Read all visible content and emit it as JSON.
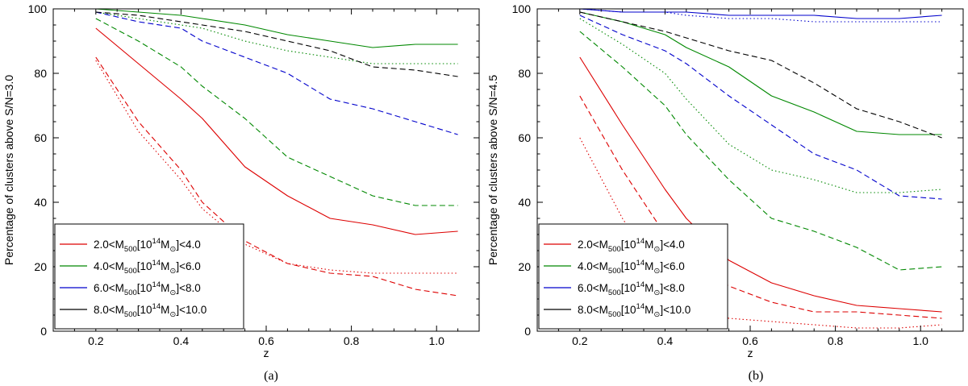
{
  "chart_data": [
    {
      "type": "line",
      "panel_label": "(a)",
      "xlabel": "z",
      "ylabel": "Percentage of clusters above S/N=3.0",
      "xlim": [
        0.1,
        1.1
      ],
      "ylim": [
        0,
        100
      ],
      "xticks": [
        0.2,
        0.4,
        0.6,
        0.8,
        1.0
      ],
      "xtick_labels": [
        "0.2",
        "0.4",
        "0.6",
        "0.8",
        "1.0"
      ],
      "yticks": [
        0,
        20,
        40,
        60,
        80,
        100
      ],
      "ytick_labels": [
        "0",
        "20",
        "40",
        "60",
        "80",
        "100"
      ],
      "legend_placement": "bottom-left",
      "x": [
        0.2,
        0.3,
        0.4,
        0.45,
        0.55,
        0.65,
        0.75,
        0.85,
        0.95,
        1.05
      ],
      "series": [
        {
          "name": "red solid",
          "color": "#dd0000",
          "dash": "solid",
          "values": [
            94,
            83,
            72,
            66,
            51,
            42,
            35,
            33,
            30,
            31
          ]
        },
        {
          "name": "red dashed",
          "color": "#dd0000",
          "dash": "dashed",
          "values": [
            85,
            65,
            50,
            40,
            28,
            21,
            18,
            17,
            13,
            11
          ]
        },
        {
          "name": "red dotted",
          "color": "#dd0000",
          "dash": "dotted",
          "values": [
            84,
            62,
            47,
            38,
            27,
            21,
            19,
            18,
            18,
            18
          ]
        },
        {
          "name": "green solid",
          "color": "#008800",
          "dash": "solid",
          "values": [
            100,
            99,
            98,
            97,
            95,
            92,
            90,
            88,
            89,
            89
          ]
        },
        {
          "name": "green dashed",
          "color": "#008800",
          "dash": "dashed",
          "values": [
            97,
            90,
            82,
            76,
            66,
            54,
            48,
            42,
            39,
            39
          ]
        },
        {
          "name": "green dotted",
          "color": "#008800",
          "dash": "dotted",
          "values": [
            99,
            97,
            95,
            94,
            90,
            87,
            85,
            83,
            83,
            83
          ]
        },
        {
          "name": "blue solid",
          "color": "#0000cc",
          "dash": "solid",
          "values": [
            100,
            100,
            100,
            100,
            100,
            100,
            100,
            100,
            100,
            100
          ]
        },
        {
          "name": "blue dashed",
          "color": "#0000cc",
          "dash": "dashed",
          "values": [
            99,
            96,
            94,
            90,
            85,
            80,
            72,
            69,
            65,
            61
          ]
        },
        {
          "name": "blue dotted",
          "color": "#0000cc",
          "dash": "dotted",
          "values": [
            100,
            100,
            100,
            100,
            100,
            100,
            100,
            100,
            100,
            100
          ]
        },
        {
          "name": "black solid",
          "color": "#000000",
          "dash": "solid",
          "values": [
            100,
            100,
            100,
            100,
            100,
            100,
            100,
            100,
            100,
            100
          ]
        },
        {
          "name": "black dashed",
          "color": "#000000",
          "dash": "dashed",
          "values": [
            99,
            98,
            96,
            95,
            93,
            90,
            87,
            82,
            81,
            79
          ]
        },
        {
          "name": "black dotted",
          "color": "#000000",
          "dash": "dotted",
          "values": [
            100,
            100,
            100,
            100,
            100,
            100,
            100,
            100,
            100,
            100
          ]
        }
      ],
      "legend": [
        {
          "color": "#dd0000",
          "pre": "2.0<M",
          "sub1": "500",
          "mid": "[10",
          "sup": "14",
          "post": "M",
          "sub2": "⊙",
          "end": "]<4.0"
        },
        {
          "color": "#008800",
          "pre": "4.0<M",
          "sub1": "500",
          "mid": "[10",
          "sup": "14",
          "post": "M",
          "sub2": "⊙",
          "end": "]<6.0"
        },
        {
          "color": "#0000cc",
          "pre": "6.0<M",
          "sub1": "500",
          "mid": "[10",
          "sup": "14",
          "post": "M",
          "sub2": "⊙",
          "end": "]<8.0"
        },
        {
          "color": "#000000",
          "pre": "8.0<M",
          "sub1": "500",
          "mid": "[10",
          "sup": "14",
          "post": "M",
          "sub2": "⊙",
          "end": "]<10.0"
        }
      ]
    },
    {
      "type": "line",
      "panel_label": "(b)",
      "xlabel": "z",
      "ylabel": "Percentage of clusters above S/N=4.5",
      "xlim": [
        0.1,
        1.1
      ],
      "ylim": [
        0,
        100
      ],
      "xticks": [
        0.2,
        0.4,
        0.6,
        0.8,
        1.0
      ],
      "xtick_labels": [
        "0.2",
        "0.4",
        "0.6",
        "0.8",
        "1.0"
      ],
      "yticks": [
        0,
        20,
        40,
        60,
        80,
        100
      ],
      "ytick_labels": [
        "0",
        "20",
        "40",
        "60",
        "80",
        "100"
      ],
      "legend_placement": "bottom-left",
      "x": [
        0.2,
        0.3,
        0.4,
        0.45,
        0.55,
        0.65,
        0.75,
        0.85,
        0.95,
        1.05
      ],
      "series": [
        {
          "name": "red solid",
          "color": "#dd0000",
          "dash": "solid",
          "values": [
            85,
            64,
            44,
            35,
            22,
            15,
            11,
            8,
            7,
            6
          ]
        },
        {
          "name": "red dashed",
          "color": "#dd0000",
          "dash": "dashed",
          "values": [
            73,
            50,
            30,
            22,
            14,
            9,
            6,
            6,
            5,
            4
          ]
        },
        {
          "name": "red dotted",
          "color": "#dd0000",
          "dash": "dotted",
          "values": [
            60,
            35,
            15,
            8,
            4,
            3,
            2,
            1,
            1,
            2
          ]
        },
        {
          "name": "green solid",
          "color": "#008800",
          "dash": "solid",
          "values": [
            99,
            96,
            92,
            88,
            82,
            73,
            68,
            62,
            61,
            61
          ]
        },
        {
          "name": "green dashed",
          "color": "#008800",
          "dash": "dashed",
          "values": [
            93,
            82,
            70,
            61,
            47,
            35,
            31,
            26,
            19,
            20
          ]
        },
        {
          "name": "green dotted",
          "color": "#008800",
          "dash": "dotted",
          "values": [
            97,
            89,
            80,
            72,
            58,
            50,
            47,
            43,
            43,
            44
          ]
        },
        {
          "name": "blue solid",
          "color": "#0000cc",
          "dash": "solid",
          "values": [
            100,
            99,
            99,
            99,
            98,
            98,
            98,
            97,
            97,
            98
          ]
        },
        {
          "name": "blue dashed",
          "color": "#0000cc",
          "dash": "dashed",
          "values": [
            98,
            92,
            87,
            83,
            73,
            64,
            55,
            50,
            42,
            41
          ]
        },
        {
          "name": "blue dotted",
          "color": "#0000cc",
          "dash": "dotted",
          "values": [
            100,
            99,
            99,
            98,
            97,
            97,
            96,
            96,
            96,
            96
          ]
        },
        {
          "name": "black solid",
          "color": "#000000",
          "dash": "solid",
          "values": [
            100,
            100,
            100,
            100,
            100,
            100,
            100,
            100,
            100,
            100
          ]
        },
        {
          "name": "black dashed",
          "color": "#000000",
          "dash": "dashed",
          "values": [
            99,
            96,
            93,
            91,
            87,
            84,
            77,
            69,
            65,
            60
          ]
        },
        {
          "name": "black dotted",
          "color": "#000000",
          "dash": "dotted",
          "values": [
            100,
            100,
            100,
            100,
            100,
            100,
            100,
            100,
            100,
            100
          ]
        }
      ],
      "legend": [
        {
          "color": "#dd0000",
          "pre": "2.0<M",
          "sub1": "500",
          "mid": "[10",
          "sup": "14",
          "post": "M",
          "sub2": "⊙",
          "end": "]<4.0"
        },
        {
          "color": "#008800",
          "pre": "4.0<M",
          "sub1": "500",
          "mid": "[10",
          "sup": "14",
          "post": "M",
          "sub2": "⊙",
          "end": "]<6.0"
        },
        {
          "color": "#0000cc",
          "pre": "6.0<M",
          "sub1": "500",
          "mid": "[10",
          "sup": "14",
          "post": "M",
          "sub2": "⊙",
          "end": "]<8.0"
        },
        {
          "color": "#000000",
          "pre": "8.0<M",
          "sub1": "500",
          "mid": "[10",
          "sup": "14",
          "post": "M",
          "sub2": "⊙",
          "end": "]<10.0"
        }
      ]
    }
  ]
}
